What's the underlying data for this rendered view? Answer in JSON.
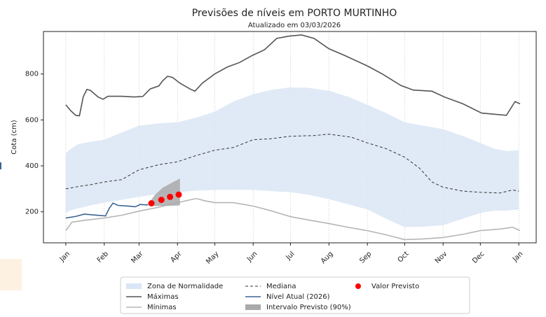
{
  "chart_data": {
    "type": "line",
    "title": "Previsões de níveis em PORTO MURTINHO",
    "subtitle": "Atualizado em 03/03/2026",
    "y_label": "Cota (cm)",
    "xlim": [
      -18,
      379
    ],
    "ylim": [
      65,
      985
    ],
    "yticks": [
      200,
      400,
      600,
      800
    ],
    "xticks": [
      {
        "value": 0,
        "label": "Jan"
      },
      {
        "value": 31,
        "label": "Feb"
      },
      {
        "value": 59,
        "label": "Mar"
      },
      {
        "value": 90,
        "label": "Apr"
      },
      {
        "value": 120,
        "label": "May"
      },
      {
        "value": 151,
        "label": "Jun"
      },
      {
        "value": 181,
        "label": "Jul"
      },
      {
        "value": 212,
        "label": "Aug"
      },
      {
        "value": 243,
        "label": "Sep"
      },
      {
        "value": 273,
        "label": "Oct"
      },
      {
        "value": 304,
        "label": "Nov"
      },
      {
        "value": 334,
        "label": "Dec"
      },
      {
        "value": 365,
        "label": "Jan"
      }
    ],
    "x_grid": true,
    "series": [
      {
        "name": "Zona de Normalidade",
        "style": "band",
        "color": "#dae6f5",
        "x": [
          0,
          3,
          10,
          20,
          31,
          45,
          59,
          75,
          90,
          105,
          120,
          135,
          151,
          165,
          181,
          195,
          212,
          228,
          243,
          258,
          273,
          288,
          304,
          320,
          334,
          345,
          355,
          365
        ],
        "upper": [
          455,
          470,
          495,
          505,
          514,
          545,
          575,
          585,
          590,
          610,
          636,
          680,
          712,
          730,
          742,
          740,
          727,
          700,
          666,
          630,
          590,
          575,
          560,
          530,
          500,
          475,
          465,
          468
        ],
        "lower": [
          195,
          205,
          215,
          228,
          240,
          252,
          265,
          278,
          285,
          292,
          295,
          296,
          295,
          290,
          285,
          275,
          255,
          232,
          210,
          170,
          133,
          135,
          142,
          170,
          195,
          205,
          205,
          210
        ]
      },
      {
        "name": "Máximas",
        "style": "line",
        "color": "#555555",
        "x": [
          0,
          4,
          8,
          11,
          14,
          17,
          20,
          26,
          30,
          34,
          45,
          55,
          62,
          68,
          75,
          78,
          82,
          86,
          92,
          100,
          104,
          110,
          120,
          130,
          140,
          150,
          160,
          170,
          180,
          190,
          200,
          212,
          225,
          243,
          255,
          270,
          280,
          295,
          305,
          320,
          335,
          345,
          355,
          362,
          366
        ],
        "values": [
          666,
          640,
          620,
          618,
          700,
          733,
          728,
          700,
          690,
          703,
          703,
          700,
          702,
          735,
          748,
          770,
          790,
          785,
          760,
          735,
          725,
          760,
          800,
          830,
          850,
          880,
          905,
          955,
          965,
          970,
          955,
          910,
          880,
          835,
          800,
          750,
          730,
          725,
          700,
          670,
          630,
          625,
          620,
          680,
          670
        ]
      },
      {
        "name": "Mínimas",
        "style": "line",
        "color": "#b5b5b5",
        "x": [
          0,
          5,
          15,
          31,
          45,
          59,
          75,
          90,
          100,
          105,
          112,
          120,
          135,
          151,
          165,
          181,
          195,
          212,
          228,
          243,
          258,
          273,
          288,
          304,
          320,
          334,
          350,
          360,
          366
        ],
        "values": [
          118,
          155,
          163,
          173,
          185,
          203,
          220,
          240,
          252,
          258,
          248,
          240,
          240,
          225,
          205,
          179,
          165,
          149,
          132,
          118,
          100,
          79,
          82,
          88,
          102,
          118,
          125,
          133,
          118
        ]
      },
      {
        "name": "Mediana",
        "style": "dashed",
        "color": "#333333",
        "x": [
          0,
          10,
          20,
          31,
          45,
          59,
          75,
          90,
          105,
          120,
          135,
          151,
          165,
          181,
          200,
          212,
          230,
          243,
          258,
          273,
          285,
          295,
          304,
          320,
          334,
          350,
          360,
          365
        ],
        "values": [
          300,
          310,
          318,
          330,
          340,
          383,
          405,
          418,
          445,
          468,
          480,
          514,
          518,
          529,
          532,
          538,
          525,
          500,
          475,
          438,
          390,
          330,
          307,
          290,
          285,
          282,
          295,
          290
        ]
      },
      {
        "name": "Nível Atual (2026)",
        "style": "line",
        "color": "#3b6592",
        "x": [
          0,
          8,
          15,
          25,
          32,
          35,
          38,
          42,
          50,
          56,
          60,
          65,
          68
        ],
        "values": [
          173,
          180,
          190,
          185,
          182,
          215,
          238,
          228,
          225,
          222,
          232,
          230,
          233
        ]
      },
      {
        "name": "Intervalo Previsto (90%)",
        "style": "band",
        "color": "#a9a9a9",
        "x": [
          66,
          72,
          78,
          85,
          92
        ],
        "upper": [
          232,
          275,
          305,
          325,
          345
        ],
        "lower": [
          230,
          225,
          226,
          226,
          228
        ]
      },
      {
        "name": "Valor Previsto",
        "style": "scatter",
        "color": "#ff0000",
        "x": [
          69,
          77,
          84,
          91
        ],
        "values": [
          237,
          252,
          265,
          275
        ]
      }
    ]
  }
}
